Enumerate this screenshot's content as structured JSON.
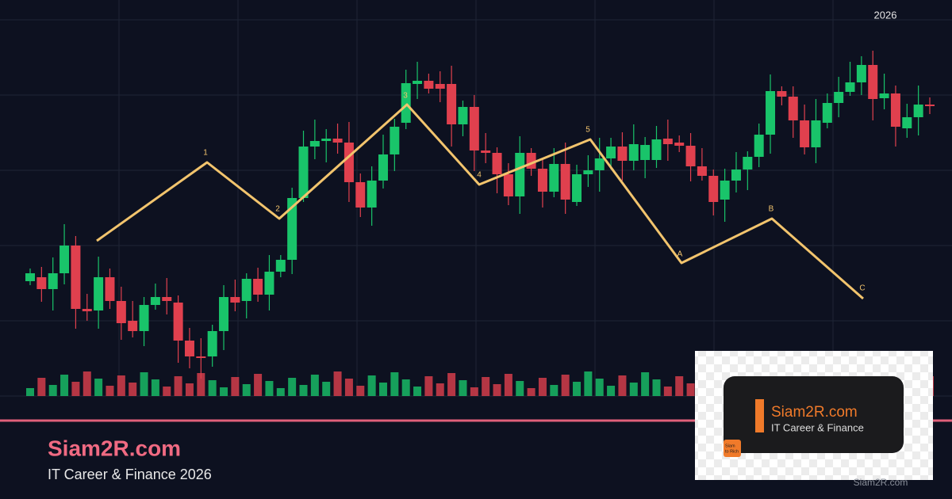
{
  "header": {
    "year": "2026"
  },
  "wave_labels": [
    "1",
    "2",
    "3",
    "4",
    "5",
    "A",
    "B",
    "C"
  ],
  "brand": {
    "title": "Siam2R.com",
    "subtitle": "IT Career & Finance 2026"
  },
  "logo": {
    "title": "Siam2R.com",
    "subtitle": "IT Career & Finance",
    "badge": [
      "Siam",
      "to Rich"
    ]
  },
  "watermark": "Siam2R.com"
}
